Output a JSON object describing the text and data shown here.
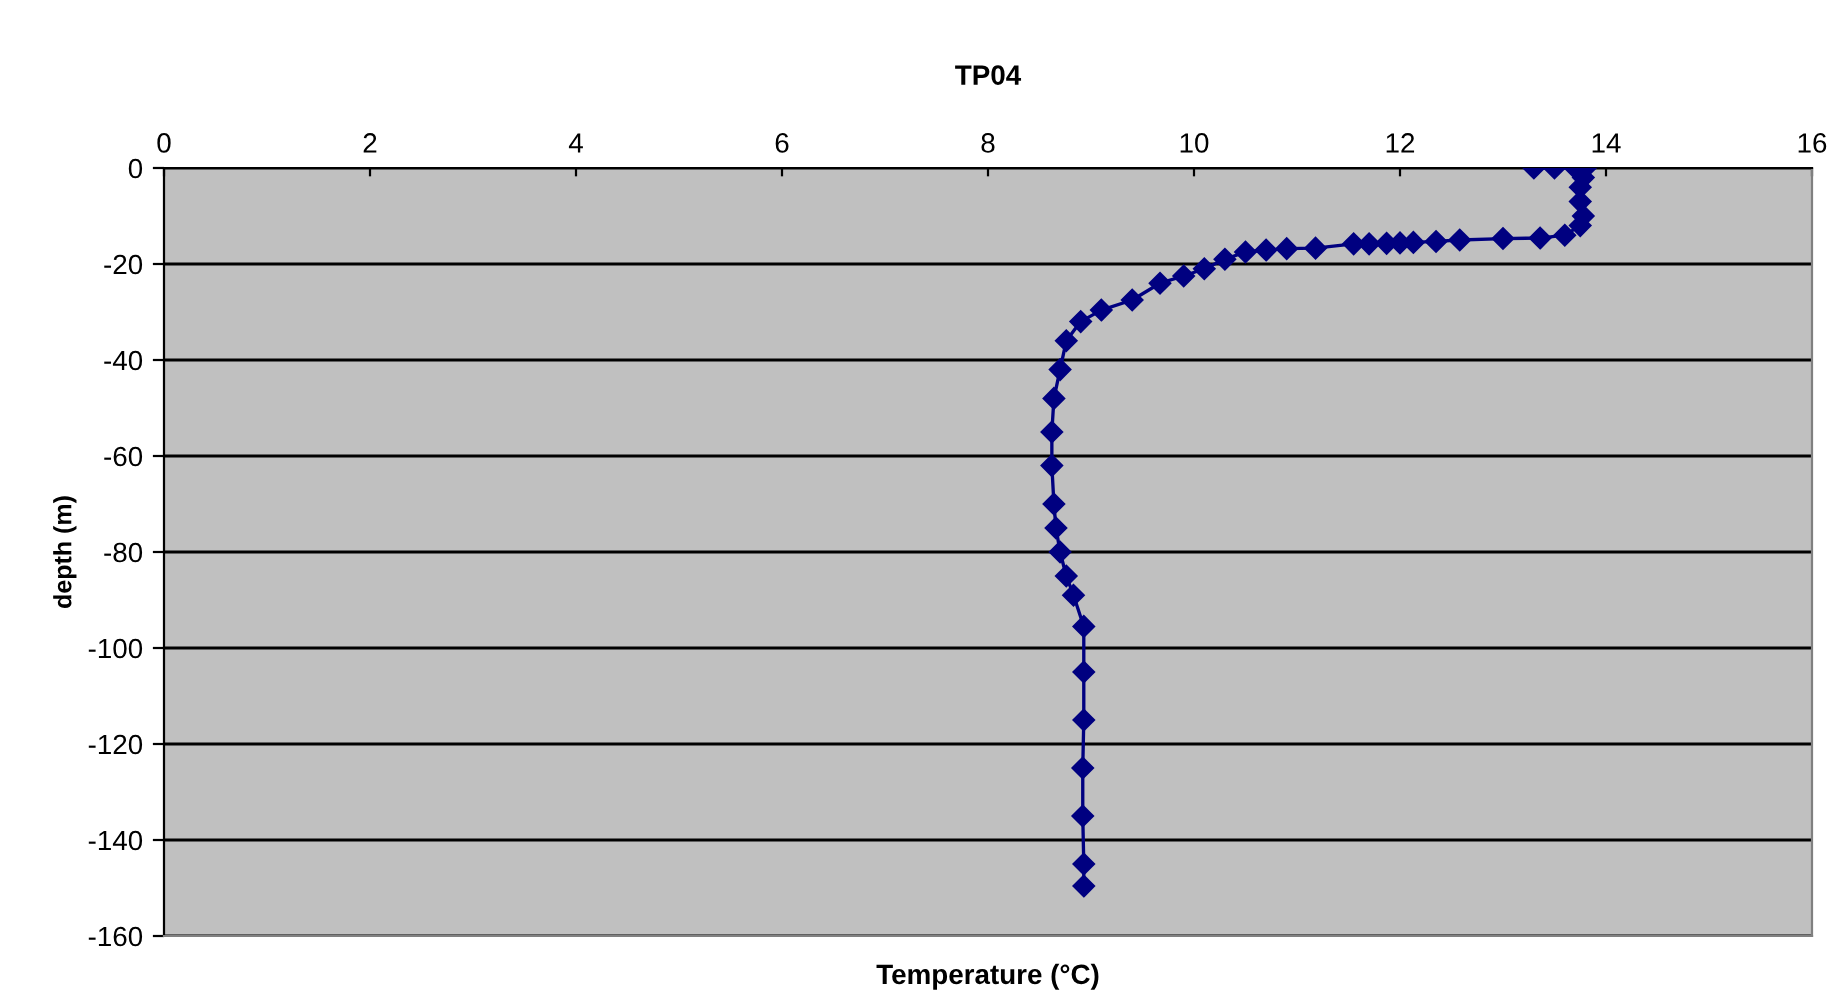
{
  "chart_data": {
    "type": "line",
    "title": "TP04",
    "xlabel": "Temperature (°C)",
    "ylabel": "depth (m)",
    "xlim": [
      0,
      16
    ],
    "xticks": [
      0,
      2,
      4,
      6,
      8,
      10,
      12,
      14,
      16
    ],
    "ylim": [
      -160,
      0
    ],
    "yticks": [
      -160,
      -140,
      -120,
      -100,
      -80,
      -60,
      -40,
      -20,
      0
    ],
    "grid": "y",
    "marker": "diamond",
    "legend": false,
    "series": [
      {
        "color": "#000080",
        "x": [
          13.3,
          13.5,
          13.7,
          13.8,
          13.78,
          13.75,
          13.75,
          13.78,
          13.75,
          13.6,
          13.36,
          13.0,
          12.58,
          12.35,
          12.13,
          12.0,
          11.87,
          11.7,
          11.55,
          11.18,
          10.9,
          10.7,
          10.5,
          10.3,
          10.1,
          9.9,
          9.67,
          9.4,
          9.1,
          8.9,
          8.76,
          8.7,
          8.64,
          8.62,
          8.62,
          8.64,
          8.66,
          8.7,
          8.76,
          8.83,
          8.93,
          8.93,
          8.93,
          8.92,
          8.92,
          8.93,
          8.93
        ],
        "values": [
          0,
          0,
          0,
          0,
          -2,
          -4,
          -7,
          -10,
          -12,
          -14,
          -14.6,
          -14.7,
          -15,
          -15.3,
          -15.5,
          -15.6,
          -15.7,
          -15.8,
          -15.8,
          -16.7,
          -16.8,
          -17.1,
          -17.5,
          -19,
          -21,
          -22.5,
          -24,
          -27.5,
          -29.6,
          -32,
          -36,
          -42,
          -48,
          -55,
          -62,
          -70,
          -75,
          -80,
          -85,
          -89,
          -95.5,
          -105,
          -115,
          -125,
          -135,
          -145,
          -149.6
        ]
      }
    ]
  }
}
